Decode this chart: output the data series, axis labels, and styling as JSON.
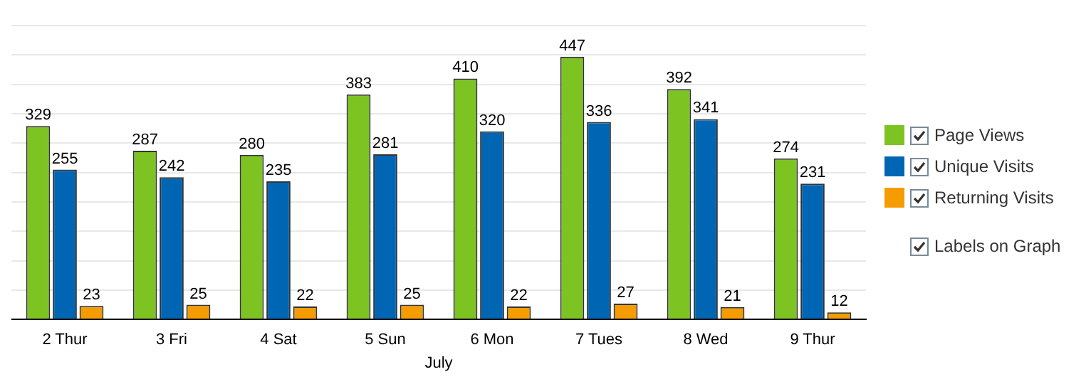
{
  "chart_data": {
    "type": "bar",
    "xlabel": "July",
    "categories": [
      "2 Thur",
      "3 Fri",
      "4 Sat",
      "5 Sun",
      "6 Mon",
      "7 Tues",
      "8 Wed",
      "9 Thur"
    ],
    "series": [
      {
        "name": "Page Views",
        "color": "#7dc423",
        "values": [
          329,
          287,
          280,
          383,
          410,
          447,
          392,
          274
        ]
      },
      {
        "name": "Unique Visits",
        "color": "#0066b3",
        "values": [
          255,
          242,
          235,
          281,
          320,
          336,
          341,
          231
        ]
      },
      {
        "name": "Returning Visits",
        "color": "#f59c00",
        "values": [
          23,
          25,
          22,
          25,
          22,
          27,
          21,
          12
        ]
      }
    ],
    "ylim": [
      0,
      500
    ],
    "yticks": [
      {
        "value": 0,
        "label": null
      },
      {
        "value": 50,
        "label": null
      },
      {
        "value": 100,
        "label": null
      },
      {
        "value": 150,
        "label": null
      },
      {
        "value": 200,
        "label": null
      },
      {
        "value": 250,
        "label": null
      },
      {
        "value": 300,
        "label": null
      },
      {
        "value": 350,
        "label": null
      },
      {
        "value": 400,
        "label": null
      },
      {
        "value": 450,
        "label": null
      },
      {
        "value": 500,
        "label": null
      }
    ],
    "tick_labels": "x",
    "grid": "y",
    "legend": "right",
    "data_labels": true,
    "annotations": [
      "Labels on Graph"
    ]
  }
}
